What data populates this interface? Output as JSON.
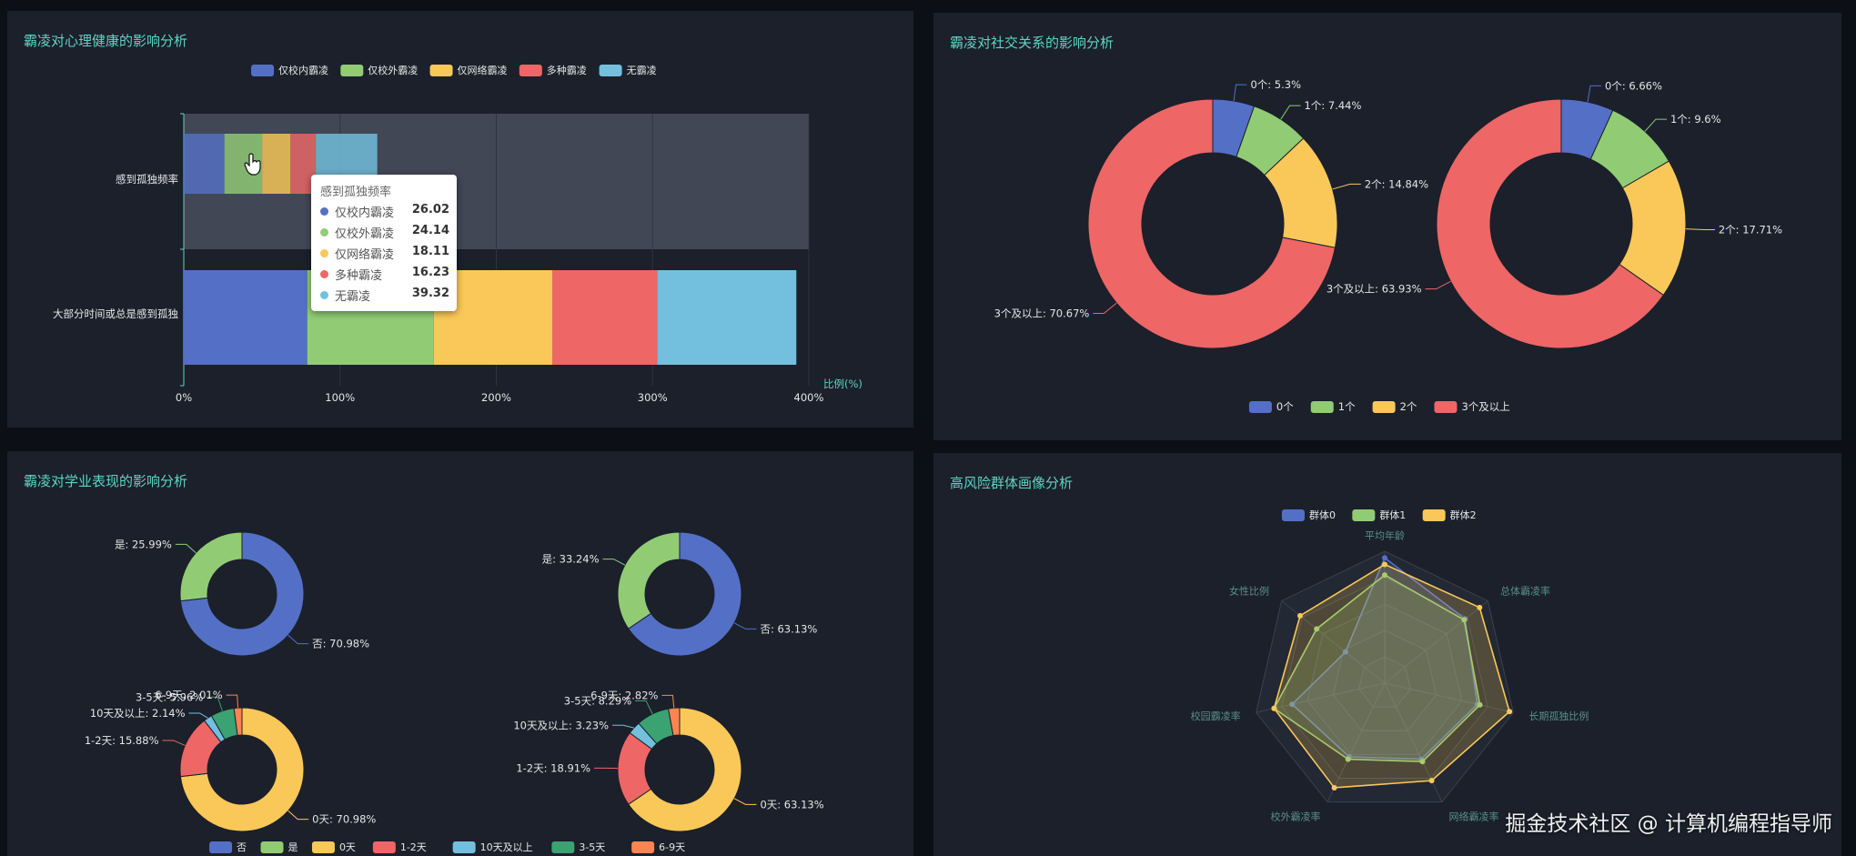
{
  "colors": {
    "blue": "#5470c6",
    "green": "#91cc75",
    "yellow": "#fac858",
    "red": "#ee6666",
    "lightblue": "#73c0de",
    "teal": "#3ba272",
    "orange": "#fc8452",
    "title": "#5fd4c4",
    "panel": "#1b202b"
  },
  "panels": {
    "p1_title": "霸凌对心理健康的影响分析",
    "p2_title": "霸凌对社交关系的影响分析",
    "p3_title": "霸凌对学业表现的影响分析",
    "p4_title": "高风险群体画像分析"
  },
  "tooltip": {
    "title": "感到孤独频率",
    "rows": [
      {
        "name": "仅校内霸凌",
        "value": "26.02"
      },
      {
        "name": "仅校外霸凌",
        "value": "24.14"
      },
      {
        "name": "仅网络霸凌",
        "value": "18.11"
      },
      {
        "name": "多种霸凌",
        "value": "16.23"
      },
      {
        "name": "无霸凌",
        "value": "39.32"
      }
    ]
  },
  "watermark": "掘金技术社区 @ 计算机编程指导师",
  "cursor_icon": "hand-pointer-icon",
  "chart_data": [
    {
      "type": "bar",
      "orientation": "horizontal-stacked",
      "title": "霸凌对心理健康的影响分析",
      "categories": [
        "感到孤独频率",
        "大部分时间或总是感到孤独"
      ],
      "series": [
        {
          "name": "仅校内霸凌",
          "values": [
            26.02,
            79
          ]
        },
        {
          "name": "仅校外霸凌",
          "values": [
            24.14,
            81
          ]
        },
        {
          "name": "仅网络霸凌",
          "values": [
            18.11,
            76
          ]
        },
        {
          "name": "多种霸凌",
          "values": [
            16.23,
            67
          ]
        },
        {
          "name": "无霸凌",
          "values": [
            39.32,
            89
          ]
        }
      ],
      "xlabel": "比例(%)",
      "xlim": [
        0,
        400
      ],
      "xticks": [
        "0%",
        "100%",
        "200%",
        "300%",
        "400%"
      ],
      "legend": "top-center",
      "highlighted_category": "感到孤独频率"
    },
    {
      "type": "pie",
      "variant": "donut",
      "title": "霸凌对社交关系的影响分析",
      "legend": "bottom-center",
      "categories": [
        "0个",
        "1个",
        "2个",
        "3个及以上"
      ],
      "pies": [
        {
          "values": [
            5.3,
            7.44,
            14.84,
            70.67
          ],
          "labels": [
            "0个: 5.3%",
            "1个: 7.44%",
            "2个: 14.84%",
            "3个及以上: 70.67%"
          ]
        },
        {
          "values": [
            6.66,
            9.6,
            17.71,
            63.93
          ],
          "labels": [
            "0个: 6.66%",
            "1个: 9.6%",
            "2个: 17.71%",
            "3个及以上: 63.93%"
          ]
        }
      ]
    },
    {
      "type": "pie",
      "variant": "donut",
      "title": "霸凌对学业表现的影响分析",
      "legend": "bottom-center",
      "legend_items": [
        "否",
        "是",
        "0天",
        "1-2天",
        "10天及以上",
        "3-5天",
        "6-9天"
      ],
      "pies": [
        {
          "categories": [
            "否",
            "是"
          ],
          "values": [
            70.98,
            25.99
          ],
          "labels": [
            "否: 70.98%",
            "是: 25.99%"
          ]
        },
        {
          "categories": [
            "否",
            "是"
          ],
          "values": [
            63.13,
            33.24
          ],
          "labels": [
            "否: 63.13%",
            "是: 33.24%"
          ]
        },
        {
          "categories": [
            "0天",
            "1-2天",
            "10天及以上",
            "3-5天",
            "6-9天"
          ],
          "values": [
            70.98,
            15.88,
            2.14,
            5.96,
            2.01
          ],
          "labels": [
            "0天: 70.98%",
            "1-2天: 15.88%",
            "10天及以上: 2.14%",
            "3-5天: 5.96%",
            "6-9天: 2.01%"
          ]
        },
        {
          "categories": [
            "0天",
            "1-2天",
            "10天及以上",
            "3-5天",
            "6-9天"
          ],
          "values": [
            63.13,
            18.91,
            3.23,
            8.29,
            2.82
          ],
          "labels": [
            "0天: 63.13%",
            "1-2天: 18.91%",
            "10天及以上: 3.23%",
            "3-5天: 8.29%",
            "6-9天: 2.82%"
          ]
        }
      ]
    },
    {
      "type": "radar",
      "title": "高风险群体画像分析",
      "legend": "top-center",
      "indicators": [
        "平均年龄",
        "总体霸凌率",
        "长期孤独比例",
        "网络霸凌率",
        "校外霸凌率",
        "校园霸凌率",
        "女性比例"
      ],
      "series": [
        {
          "name": "群体0",
          "values": [
            0.95,
            0.78,
            0.72,
            0.64,
            0.62,
            0.72,
            0.38
          ]
        },
        {
          "name": "群体1",
          "values": [
            0.82,
            0.77,
            0.74,
            0.66,
            0.64,
            0.86,
            0.66
          ]
        },
        {
          "name": "群体2",
          "values": [
            0.9,
            0.92,
            0.97,
            0.82,
            0.88,
            0.86,
            0.82
          ]
        }
      ]
    }
  ]
}
